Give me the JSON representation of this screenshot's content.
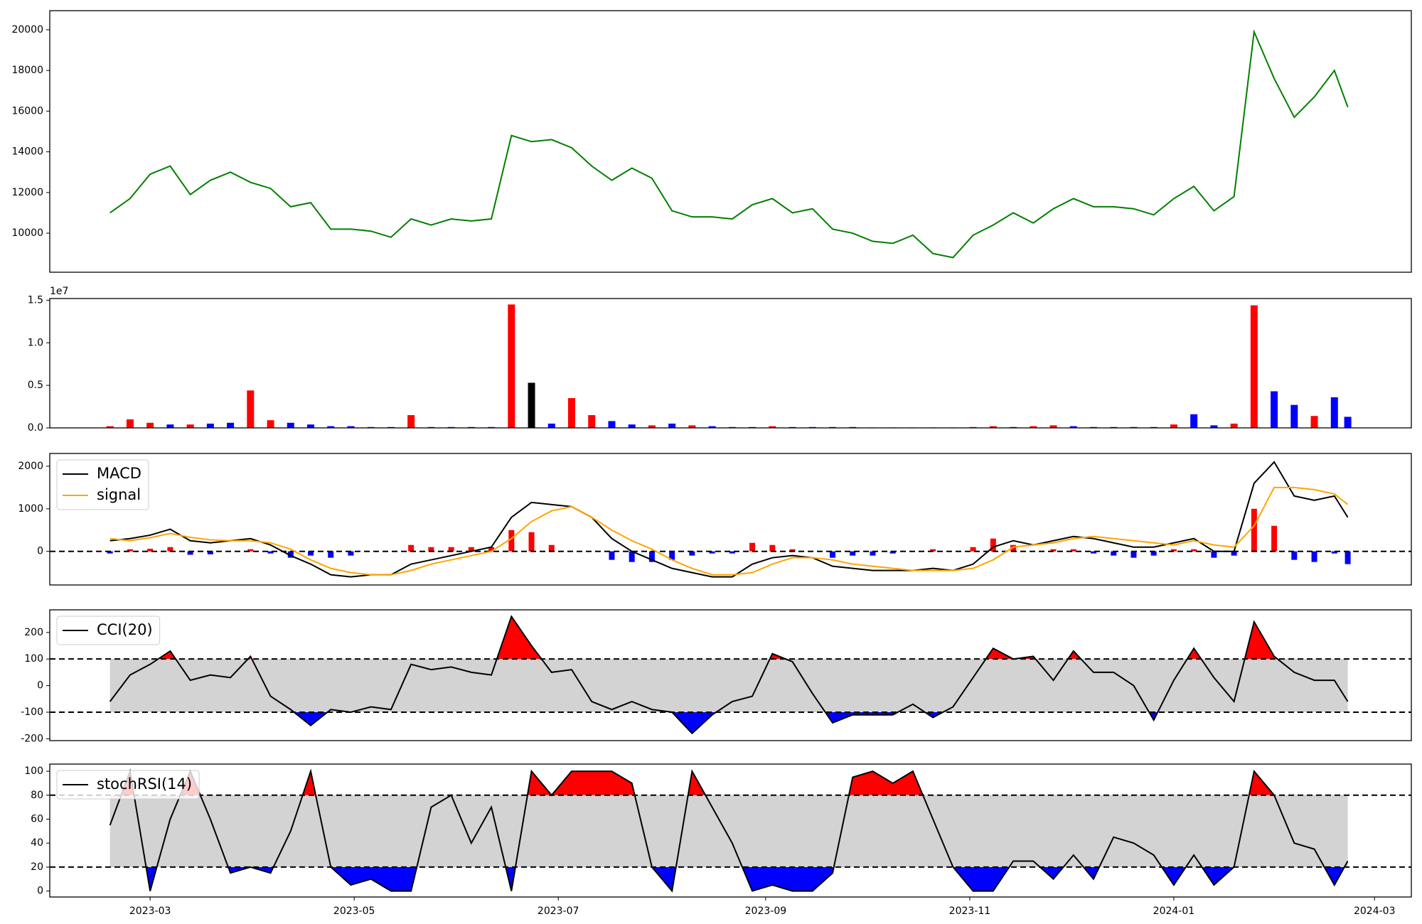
{
  "chart_data": [
    {
      "type": "line",
      "color": "green",
      "x": [
        47,
        53,
        59,
        65,
        71,
        77,
        83,
        89,
        95,
        101,
        107,
        113,
        119,
        125,
        131,
        137,
        143,
        149,
        155,
        161,
        167,
        173,
        179,
        185,
        191,
        197,
        203,
        209,
        215,
        221,
        227,
        233,
        239,
        245,
        251,
        257,
        263,
        269,
        275,
        281,
        287,
        293,
        299,
        305,
        311,
        317,
        323,
        329,
        335,
        341,
        347,
        353,
        359,
        365,
        371,
        377,
        383,
        389,
        395,
        401,
        407,
        413,
        417
      ],
      "values": [
        11000,
        11700,
        12900,
        13300,
        11900,
        12600,
        13000,
        12500,
        12200,
        11300,
        11500,
        10200,
        10200,
        10100,
        9800,
        10700,
        10400,
        10700,
        10600,
        10700,
        14800,
        14500,
        14600,
        14200,
        13300,
        12600,
        13200,
        12700,
        11100,
        10800,
        10800,
        10700,
        11400,
        11700,
        11000,
        11200,
        10200,
        10000,
        9600,
        9500,
        9900,
        9000,
        8800,
        9900,
        10400,
        11000,
        10500,
        11200,
        11700,
        11300,
        11300,
        11200,
        10900,
        11700,
        12300,
        11100,
        11800,
        19900,
        17600,
        15700,
        16700,
        18000,
        16200
      ],
      "xlim": [
        29,
        436
      ],
      "ylim": [
        8080,
        20940
      ],
      "yticks": [
        10000,
        12000,
        14000,
        16000,
        18000,
        20000
      ]
    },
    {
      "type": "bar",
      "offset_label": "1e7",
      "x": [
        47,
        53,
        59,
        65,
        71,
        77,
        83,
        89,
        95,
        101,
        107,
        113,
        119,
        125,
        131,
        137,
        143,
        149,
        155,
        161,
        167,
        173,
        179,
        185,
        191,
        197,
        203,
        209,
        215,
        221,
        227,
        233,
        239,
        245,
        251,
        257,
        263,
        269,
        275,
        281,
        287,
        293,
        299,
        305,
        311,
        317,
        323,
        329,
        335,
        341,
        347,
        353,
        359,
        365,
        371,
        377,
        383,
        389,
        395,
        401,
        407,
        413,
        417
      ],
      "values": [
        200000,
        1000000,
        600000,
        400000,
        400000,
        500000,
        600000,
        4400000,
        900000,
        600000,
        400000,
        200000,
        200000,
        100000,
        100000,
        1500000,
        100000,
        100000,
        100000,
        100000,
        14500000,
        5300000,
        500000,
        3500000,
        1500000,
        800000,
        400000,
        300000,
        500000,
        300000,
        200000,
        100000,
        100000,
        200000,
        100000,
        100000,
        100000,
        100000,
        50000,
        50000,
        50000,
        50000,
        50000,
        100000,
        200000,
        100000,
        200000,
        300000,
        200000,
        100000,
        100000,
        100000,
        100000,
        400000,
        1600000,
        300000,
        500000,
        14400000,
        4300000,
        2700000,
        1400000,
        3600000,
        1300000
      ],
      "colors": [
        "red",
        "red",
        "red",
        "blue",
        "red",
        "blue",
        "blue",
        "red",
        "red",
        "blue",
        "blue",
        "blue",
        "blue",
        "blue",
        "blue",
        "red",
        "blue",
        "blue",
        "blue",
        "blue",
        "red",
        "black",
        "blue",
        "red",
        "red",
        "blue",
        "blue",
        "red",
        "blue",
        "red",
        "blue",
        "blue",
        "blue",
        "red",
        "blue",
        "blue",
        "blue",
        "blue",
        "blue",
        "blue",
        "blue",
        "blue",
        "blue",
        "red",
        "red",
        "blue",
        "red",
        "red",
        "blue",
        "blue",
        "blue",
        "blue",
        "blue",
        "red",
        "blue",
        "blue",
        "red",
        "red",
        "blue",
        "blue",
        "red",
        "blue",
        "blue"
      ],
      "xlim": [
        29,
        436
      ],
      "ylim": [
        0,
        15200000
      ],
      "yticks": [
        {
          "value": 0,
          "label": "0.0"
        },
        {
          "value": 5000000,
          "label": "0.5"
        },
        {
          "value": 10000000,
          "label": "1.0"
        },
        {
          "value": 15000000,
          "label": "1.5"
        }
      ]
    },
    {
      "type": "macd",
      "legend": "upper left",
      "zero_line": true,
      "pos_color": "red",
      "neg_color": "blue",
      "x": [
        47,
        53,
        59,
        65,
        71,
        77,
        83,
        89,
        95,
        101,
        107,
        113,
        119,
        125,
        131,
        137,
        143,
        149,
        155,
        161,
        167,
        173,
        179,
        185,
        191,
        197,
        203,
        209,
        215,
        221,
        227,
        233,
        239,
        245,
        251,
        257,
        263,
        269,
        275,
        281,
        287,
        293,
        299,
        305,
        311,
        317,
        323,
        329,
        335,
        341,
        347,
        353,
        359,
        365,
        371,
        377,
        383,
        389,
        395,
        401,
        407,
        413,
        417
      ],
      "series": [
        {
          "name": "MACD",
          "color": "black",
          "values": [
            250,
            300,
            380,
            520,
            250,
            200,
            250,
            300,
            150,
            -100,
            -300,
            -550,
            -600,
            -550,
            -550,
            -300,
            -200,
            -100,
            0,
            100,
            800,
            1150,
            1100,
            1050,
            800,
            300,
            0,
            -200,
            -400,
            -500,
            -600,
            -600,
            -300,
            -150,
            -100,
            -150,
            -350,
            -400,
            -450,
            -450,
            -450,
            -400,
            -450,
            -300,
            100,
            250,
            150,
            250,
            350,
            300,
            200,
            100,
            100,
            200,
            300,
            0,
            0,
            1600,
            2100,
            1300,
            1200,
            1300,
            800
          ]
        },
        {
          "name": "signal",
          "color": "orange",
          "values": [
            300,
            250,
            320,
            420,
            330,
            270,
            250,
            250,
            200,
            50,
            -200,
            -400,
            -500,
            -550,
            -550,
            -450,
            -300,
            -200,
            -100,
            0,
            300,
            700,
            950,
            1050,
            800,
            500,
            250,
            50,
            -200,
            -400,
            -550,
            -550,
            -500,
            -300,
            -150,
            -150,
            -200,
            -300,
            -350,
            -400,
            -450,
            -450,
            -450,
            -400,
            -200,
            100,
            150,
            200,
            300,
            350,
            300,
            250,
            200,
            150,
            250,
            150,
            100,
            600,
            1500,
            1500,
            1450,
            1350,
            1100
          ]
        }
      ],
      "histogram": [
        -50,
        50,
        60,
        100,
        -80,
        -70,
        0,
        50,
        -50,
        -150,
        -100,
        -150,
        -100,
        0,
        0,
        150,
        100,
        100,
        100,
        100,
        500,
        450,
        150,
        0,
        0,
        -200,
        -250,
        -250,
        -200,
        -100,
        -50,
        -50,
        200,
        150,
        50,
        0,
        -150,
        -100,
        -100,
        -50,
        0,
        50,
        0,
        100,
        300,
        150,
        0,
        50,
        50,
        -50,
        -100,
        -150,
        -100,
        50,
        50,
        -150,
        -100,
        1000,
        600,
        -200,
        -250,
        -50,
        -300
      ],
      "xlim": [
        29,
        436
      ],
      "ylim": [
        -790,
        2300
      ],
      "yticks": [
        0,
        1000,
        2000
      ]
    },
    {
      "type": "oscillator",
      "legend": "upper left",
      "thresholds": [
        100,
        -100
      ],
      "band_color": "lightgray",
      "upper_fill": "red",
      "lower_fill": "blue",
      "x": [
        47,
        53,
        59,
        65,
        71,
        77,
        83,
        89,
        95,
        101,
        107,
        113,
        119,
        125,
        131,
        137,
        143,
        149,
        155,
        161,
        167,
        173,
        179,
        185,
        191,
        197,
        203,
        209,
        215,
        221,
        227,
        233,
        239,
        245,
        251,
        257,
        263,
        269,
        275,
        281,
        287,
        293,
        299,
        305,
        311,
        317,
        323,
        329,
        335,
        341,
        347,
        353,
        359,
        365,
        371,
        377,
        383,
        389,
        395,
        401,
        407,
        413,
        417
      ],
      "series": [
        {
          "name": "CCI(20)",
          "color": "black",
          "values": [
            -60,
            40,
            80,
            130,
            20,
            40,
            30,
            110,
            -40,
            -90,
            -150,
            -90,
            -100,
            -80,
            -90,
            80,
            60,
            70,
            50,
            40,
            260,
            150,
            50,
            60,
            -60,
            -90,
            -60,
            -90,
            -100,
            -180,
            -110,
            -60,
            -40,
            120,
            90,
            -30,
            -140,
            -110,
            -110,
            -110,
            -70,
            -120,
            -80,
            30,
            140,
            100,
            110,
            20,
            130,
            50,
            50,
            0,
            -130,
            20,
            140,
            30,
            -60,
            240,
            110,
            50,
            20,
            20,
            -60
          ]
        }
      ],
      "xlim": [
        29,
        436
      ],
      "ylim": [
        -207,
        285
      ],
      "yticks": [
        -200,
        -100,
        0,
        100,
        200
      ]
    },
    {
      "type": "oscillator",
      "legend": "upper left",
      "thresholds": [
        80,
        20
      ],
      "band_color": "lightgray",
      "upper_fill": "red",
      "lower_fill": "blue",
      "x": [
        47,
        53,
        59,
        65,
        71,
        77,
        83,
        89,
        95,
        101,
        107,
        113,
        119,
        125,
        131,
        137,
        143,
        149,
        155,
        161,
        167,
        173,
        179,
        185,
        191,
        197,
        203,
        209,
        215,
        221,
        227,
        233,
        239,
        245,
        251,
        257,
        263,
        269,
        275,
        281,
        287,
        293,
        299,
        305,
        311,
        317,
        323,
        329,
        335,
        341,
        347,
        353,
        359,
        365,
        371,
        377,
        383,
        389,
        395,
        401,
        407,
        413,
        417
      ],
      "series": [
        {
          "name": "stochRSI(14)",
          "color": "black",
          "values": [
            55,
            100,
            0,
            60,
            100,
            60,
            15,
            20,
            15,
            50,
            100,
            20,
            5,
            10,
            0,
            0,
            70,
            80,
            40,
            70,
            0,
            100,
            80,
            100,
            100,
            100,
            90,
            20,
            0,
            100,
            70,
            40,
            0,
            5,
            0,
            0,
            15,
            95,
            100,
            90,
            100,
            60,
            20,
            0,
            0,
            25,
            25,
            10,
            30,
            10,
            45,
            40,
            30,
            5,
            30,
            5,
            20,
            100,
            80,
            40,
            35,
            5,
            25
          ]
        }
      ],
      "xlim": [
        29,
        436
      ],
      "ylim": [
        -5,
        106
      ],
      "yticks": [
        0,
        20,
        40,
        60,
        80,
        100
      ],
      "xticks": [
        {
          "value": 59,
          "label": "2023-03"
        },
        {
          "value": 120,
          "label": "2023-05"
        },
        {
          "value": 181,
          "label": "2023-07"
        },
        {
          "value": 243,
          "label": "2023-09"
        },
        {
          "value": 304,
          "label": "2023-11"
        },
        {
          "value": 365,
          "label": "2024-01"
        },
        {
          "value": 425,
          "label": "2024-03"
        }
      ]
    }
  ]
}
